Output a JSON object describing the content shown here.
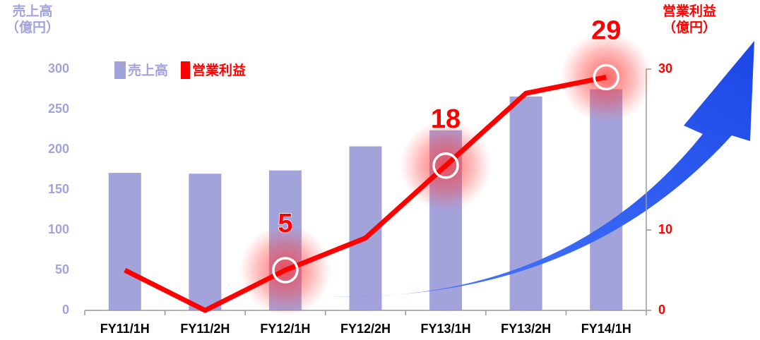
{
  "chart_data": {
    "type": "combo",
    "categories": [
      "FY11/1H",
      "FY11/2H",
      "FY12/1H",
      "FY12/2H",
      "FY13/1H",
      "FY13/2H",
      "FY14/1H"
    ],
    "ylabel": "売上高\n（億円）",
    "y2label": "営業利益\n（億円）",
    "ylim": [
      0,
      300
    ],
    "yticks": [
      0,
      50,
      100,
      150,
      200,
      250,
      300
    ],
    "y2lim": [
      0,
      30
    ],
    "y2ticks": [
      0,
      10,
      30
    ],
    "legend": "top-left",
    "series": [
      {
        "name": "売上高",
        "type": "bar",
        "color": "#a3a3dc",
        "values": [
          171,
          170,
          174,
          204,
          224,
          266,
          275
        ]
      },
      {
        "name": "営業利益",
        "type": "line",
        "axis": "y2",
        "color": "#ff0000",
        "values": [
          5,
          0,
          5,
          9,
          18,
          27,
          29
        ],
        "value_labels": [
          null,
          null,
          "5",
          null,
          "18",
          null,
          "29"
        ]
      }
    ]
  }
}
